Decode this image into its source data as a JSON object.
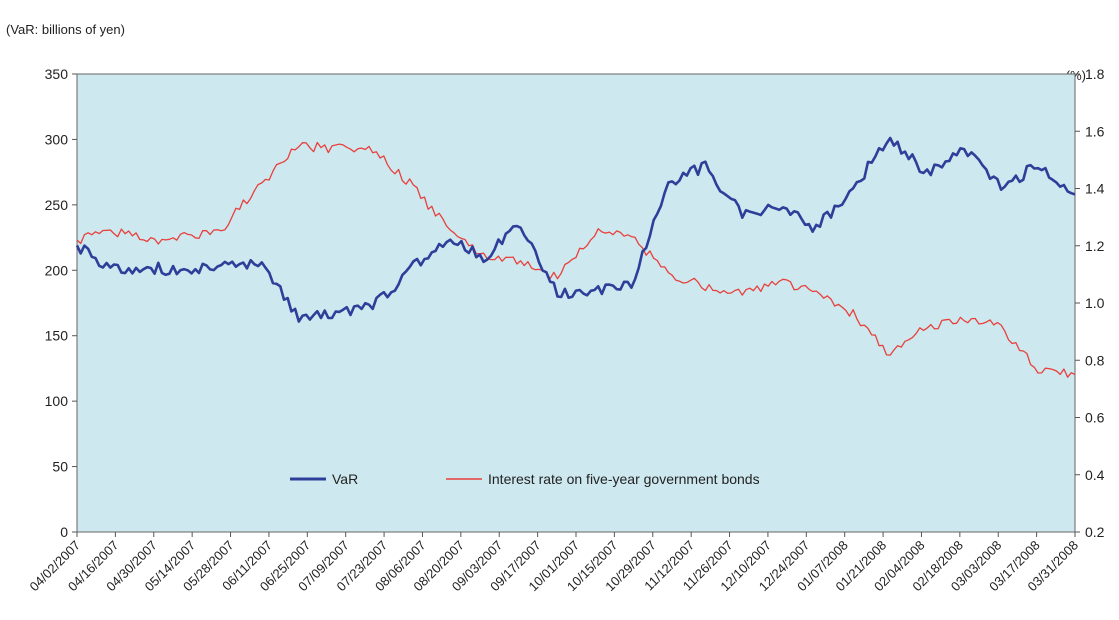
{
  "chart_data": {
    "type": "line",
    "left_axis_label": "(VaR: billions of yen)",
    "right_axis_label": "(%)",
    "left_ylim": [
      0,
      350
    ],
    "left_yticks": [
      0,
      50,
      100,
      150,
      200,
      250,
      300,
      350
    ],
    "right_ylim": [
      0.2,
      1.8
    ],
    "right_yticks": [
      "0.2",
      "0.4",
      "0.6",
      "0.8",
      "1.0",
      "1.2",
      "1.4",
      "1.6",
      "1.8"
    ],
    "x_tick_labels": [
      "04/02/2007",
      "04/16/2007",
      "04/30/2007",
      "05/14/2007",
      "05/28/2007",
      "06/11/2007",
      "06/25/2007",
      "07/09/2007",
      "07/23/2007",
      "08/06/2007",
      "08/20/2007",
      "09/03/2007",
      "09/17/2007",
      "10/01/2007",
      "10/15/2007",
      "10/29/2007",
      "11/12/2007",
      "11/26/2007",
      "12/10/2007",
      "12/24/2007",
      "01/07/2008",
      "01/21/2008",
      "02/04/2008",
      "02/18/2008",
      "03/03/2008",
      "03/17/2008",
      "03/31/2008"
    ],
    "plot_background": "#cde8ee",
    "legend_placement": "bottom-center",
    "series": [
      {
        "name": "VaR",
        "axis": "left",
        "color": "#2e3f9a",
        "values": [
          219,
          200,
          202,
          198,
          207,
          204,
          165,
          168,
          172,
          200,
          224,
          210,
          235,
          183,
          183,
          190,
          265,
          280,
          242,
          250,
          232,
          263,
          302,
          273,
          295,
          262,
          281,
          258
        ]
      },
      {
        "name": "Interest rate on five-year government bonds",
        "axis": "right",
        "color": "#e8403c",
        "values": [
          1.22,
          1.25,
          1.22,
          1.23,
          1.27,
          1.42,
          1.55,
          1.54,
          1.53,
          1.42,
          1.27,
          1.17,
          1.14,
          1.09,
          1.25,
          1.23,
          1.1,
          1.06,
          1.04,
          1.07,
          1.05,
          0.96,
          0.82,
          0.92,
          0.94,
          0.92,
          0.76,
          0.75
        ]
      }
    ]
  }
}
